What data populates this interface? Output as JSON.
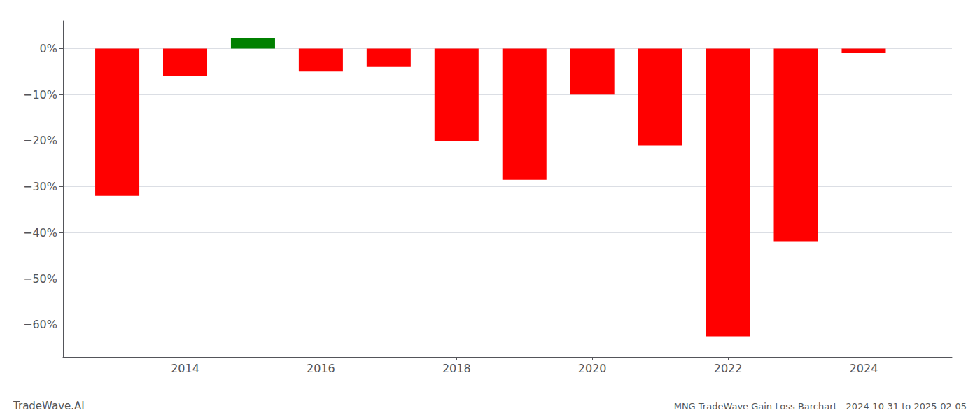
{
  "chart_data": {
    "type": "bar",
    "title": "MNG TradeWave Gain Loss Barchart - 2024-10-31 to 2025-02-05",
    "annotations": [
      "TradeWave.AI"
    ],
    "x": [
      2013,
      2014,
      2015,
      2016,
      2017,
      2018,
      2019,
      2020,
      2021,
      2022,
      2023,
      2024
    ],
    "values": [
      -0.32,
      -0.06,
      0.022,
      -0.05,
      -0.04,
      -0.2,
      -0.285,
      -0.1,
      -0.21,
      -0.625,
      -0.42,
      -0.01
    ],
    "colors": [
      "#ff0000",
      "#ff0000",
      "#008000",
      "#ff0000",
      "#ff0000",
      "#ff0000",
      "#ff0000",
      "#ff0000",
      "#ff0000",
      "#ff0000",
      "#ff0000",
      "#ff0000"
    ],
    "xlim": [
      2012.2,
      2025.3
    ],
    "xticks": [
      2014,
      2016,
      2018,
      2020,
      2022,
      2024
    ],
    "ylim": [
      -0.67,
      0.06
    ],
    "yticks": [
      {
        "value": 0.0,
        "label": "0%"
      },
      {
        "value": -0.1,
        "label": "−10%"
      },
      {
        "value": -0.2,
        "label": "−20%"
      },
      {
        "value": -0.3,
        "label": "−30%"
      },
      {
        "value": -0.4,
        "label": "−40%"
      },
      {
        "value": -0.5,
        "label": "−50%"
      },
      {
        "value": -0.6,
        "label": "−60%"
      }
    ],
    "grid": true
  }
}
